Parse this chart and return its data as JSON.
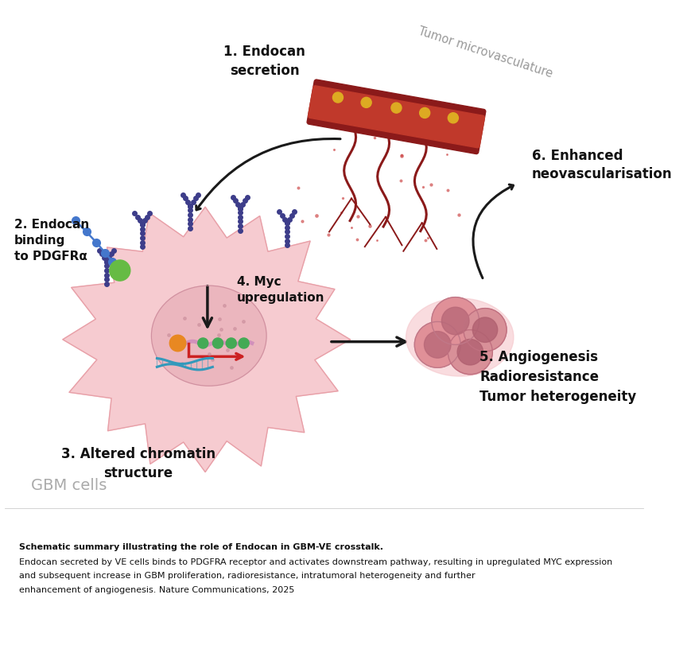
{
  "bg_color": "#ffffff",
  "caption_bold": "Schematic summary illustrating the role of Endocan in GBM-VE crosstalk.",
  "caption_normal": " Endocan secreted by VE cells binds to PDGFRA receptor and activates downstream pathway, resulting in upregulated MYC expression and subsequent increase in GBM proliferation, radioresistance, intratumoral heterogeneity and further enhancement of angiogenesis. Nature Communications, 2025",
  "label1": "1. Endocan\nsecretion",
  "label2": "2. Endocan\nbinding\nto PDGFRα",
  "label3": "3. Altered chromatin\nstructure",
  "label4": "4. Myc\nupregulation",
  "label5": "5. Angiogenesis\nRadioresistance\nTumor heterogeneity",
  "label6": "6. Enhanced\nneovascularisation",
  "tumor_micro_label": "Tumor microvasculature",
  "gbm_cells_label": "GBM cells",
  "cell_color": "#f5c6cb",
  "cell_edge_color": "#e8a0a8",
  "nucleus_color": "#e8b0b8",
  "receptor_color": "#3d3d8a",
  "arrow_color": "#1a1a1a",
  "red_arrow_color": "#cc2222",
  "gray_label_color": "#aaaaaa",
  "vessel_color": "#8b1a1a",
  "vessel_inner_color": "#c0392b"
}
